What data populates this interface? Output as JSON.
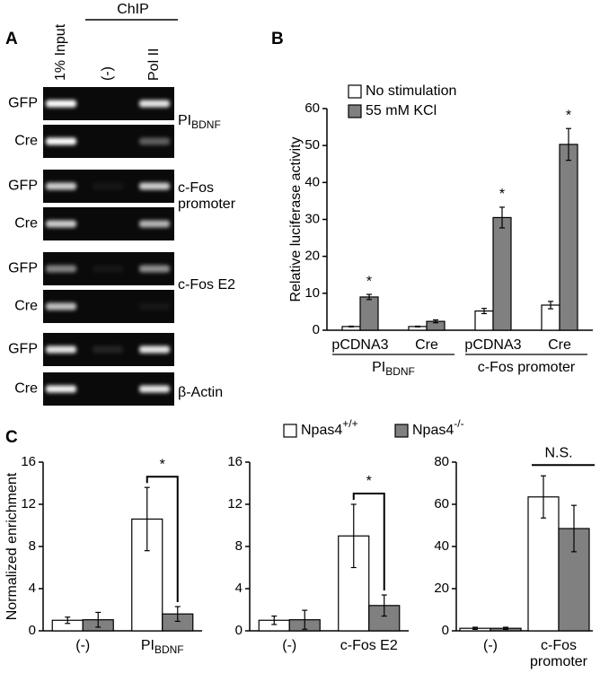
{
  "panel_labels": [
    "A",
    "B",
    "C"
  ],
  "gel": {
    "header": "ChIP",
    "lanes": [
      "1% Input",
      "(-)",
      "Pol II"
    ],
    "rows": [
      "GFP",
      "Cre",
      "GFP",
      "Cre",
      "GFP",
      "Cre",
      "GFP",
      "Cre"
    ],
    "groups": [
      {
        "text": "PI",
        "sub": "BDNF"
      },
      [
        "c-Fos",
        "promoter"
      ],
      "c-Fos E2",
      "β-Actin"
    ]
  },
  "chart_data": [
    {
      "type": "bar",
      "ylabel": "Relative luciferase activity",
      "categories": [
        "pCDNA3",
        "Cre",
        "pCDNA3",
        "Cre"
      ],
      "groups": [
        {
          "text": "PI",
          "sub": "BDNF"
        },
        "c-Fos promoter"
      ],
      "series": [
        {
          "name": "No stimulation",
          "color": "#ffffff",
          "values": [
            1,
            1,
            5.2,
            6.8
          ],
          "errors": [
            0.1,
            0.1,
            0.7,
            1.0
          ]
        },
        {
          "name": "55 mM KCl",
          "color": "#808080",
          "values": [
            9,
            2.4,
            30.5,
            50.3
          ],
          "errors": [
            0.7,
            0.4,
            2.8,
            4.3
          ],
          "significance": [
            "*",
            null,
            "*",
            "*"
          ]
        }
      ],
      "ylim": [
        0,
        60
      ],
      "yticks": [
        0,
        10,
        20,
        30,
        40,
        50,
        60
      ]
    },
    {
      "type": "bar",
      "ylabel": "Normalized enrichment",
      "categories": [
        "(-)",
        {
          "text": "PI",
          "sub": "BDNF"
        }
      ],
      "series": [
        {
          "name": "Npas4",
          "name_sup": "+/+",
          "color": "#ffffff",
          "values": [
            1.0,
            10.6
          ],
          "errors": [
            0.3,
            3.0
          ]
        },
        {
          "name": "Npas4",
          "name_sup": "-/-",
          "color": "#808080",
          "values": [
            1.05,
            1.6
          ],
          "errors": [
            0.7,
            0.7
          ]
        }
      ],
      "comparison": "*",
      "ylim": [
        0,
        16
      ],
      "yticks": [
        0,
        4,
        8,
        12,
        16
      ]
    },
    {
      "type": "bar",
      "categories": [
        "(-)",
        "c-Fos E2"
      ],
      "series": [
        {
          "name": "Npas4",
          "name_sup": "+/+",
          "color": "#ffffff",
          "values": [
            1.0,
            9.0
          ],
          "errors": [
            0.4,
            3.0
          ]
        },
        {
          "name": "Npas4",
          "name_sup": "-/-",
          "color": "#808080",
          "values": [
            1.05,
            2.4
          ],
          "errors": [
            0.9,
            1.0
          ]
        }
      ],
      "comparison": "*",
      "ylim": [
        0,
        16
      ],
      "yticks": [
        0,
        4,
        8,
        12,
        16
      ]
    },
    {
      "type": "bar",
      "categories": [
        "(-)",
        [
          "c-Fos",
          "promoter"
        ]
      ],
      "series": [
        {
          "name": "Npas4",
          "name_sup": "+/+",
          "color": "#ffffff",
          "values": [
            1.2,
            63.5
          ],
          "errors": [
            0.5,
            10
          ]
        },
        {
          "name": "Npas4",
          "name_sup": "-/-",
          "color": "#808080",
          "values": [
            1.2,
            48.5
          ],
          "errors": [
            0.5,
            11
          ]
        }
      ],
      "comparison": "N.S.",
      "ylim": [
        0,
        80
      ],
      "yticks": [
        0,
        20,
        40,
        60,
        80
      ]
    }
  ]
}
